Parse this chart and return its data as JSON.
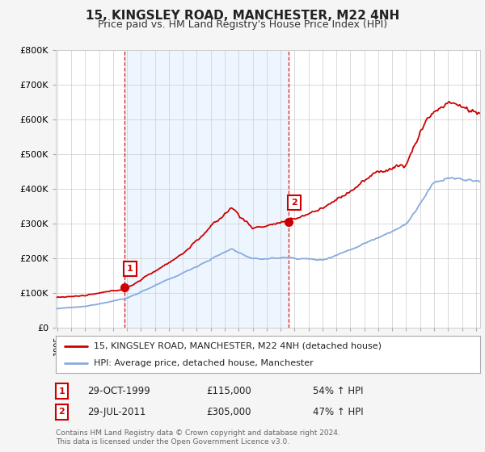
{
  "title": "15, KINGSLEY ROAD, MANCHESTER, M22 4NH",
  "subtitle": "Price paid vs. HM Land Registry's House Price Index (HPI)",
  "ylim": [
    0,
    800000
  ],
  "xlim_start": 1994.9,
  "xlim_end": 2025.3,
  "sale1_date": 1999.83,
  "sale1_price": 115000,
  "sale1_label": "1",
  "sale2_date": 2011.58,
  "sale2_price": 305000,
  "sale2_label": "2",
  "red_color": "#cc0000",
  "blue_color": "#88aadd",
  "shade_color": "#ddeeff",
  "legend_line1": "15, KINGSLEY ROAD, MANCHESTER, M22 4NH (detached house)",
  "legend_line2": "HPI: Average price, detached house, Manchester",
  "table_row1": [
    "1",
    "29-OCT-1999",
    "£115,000",
    "54% ↑ HPI"
  ],
  "table_row2": [
    "2",
    "29-JUL-2011",
    "£305,000",
    "47% ↑ HPI"
  ],
  "footnote": "Contains HM Land Registry data © Crown copyright and database right 2024.\nThis data is licensed under the Open Government Licence v3.0.",
  "background_color": "#f5f5f5",
  "plot_bg_color": "#ffffff"
}
